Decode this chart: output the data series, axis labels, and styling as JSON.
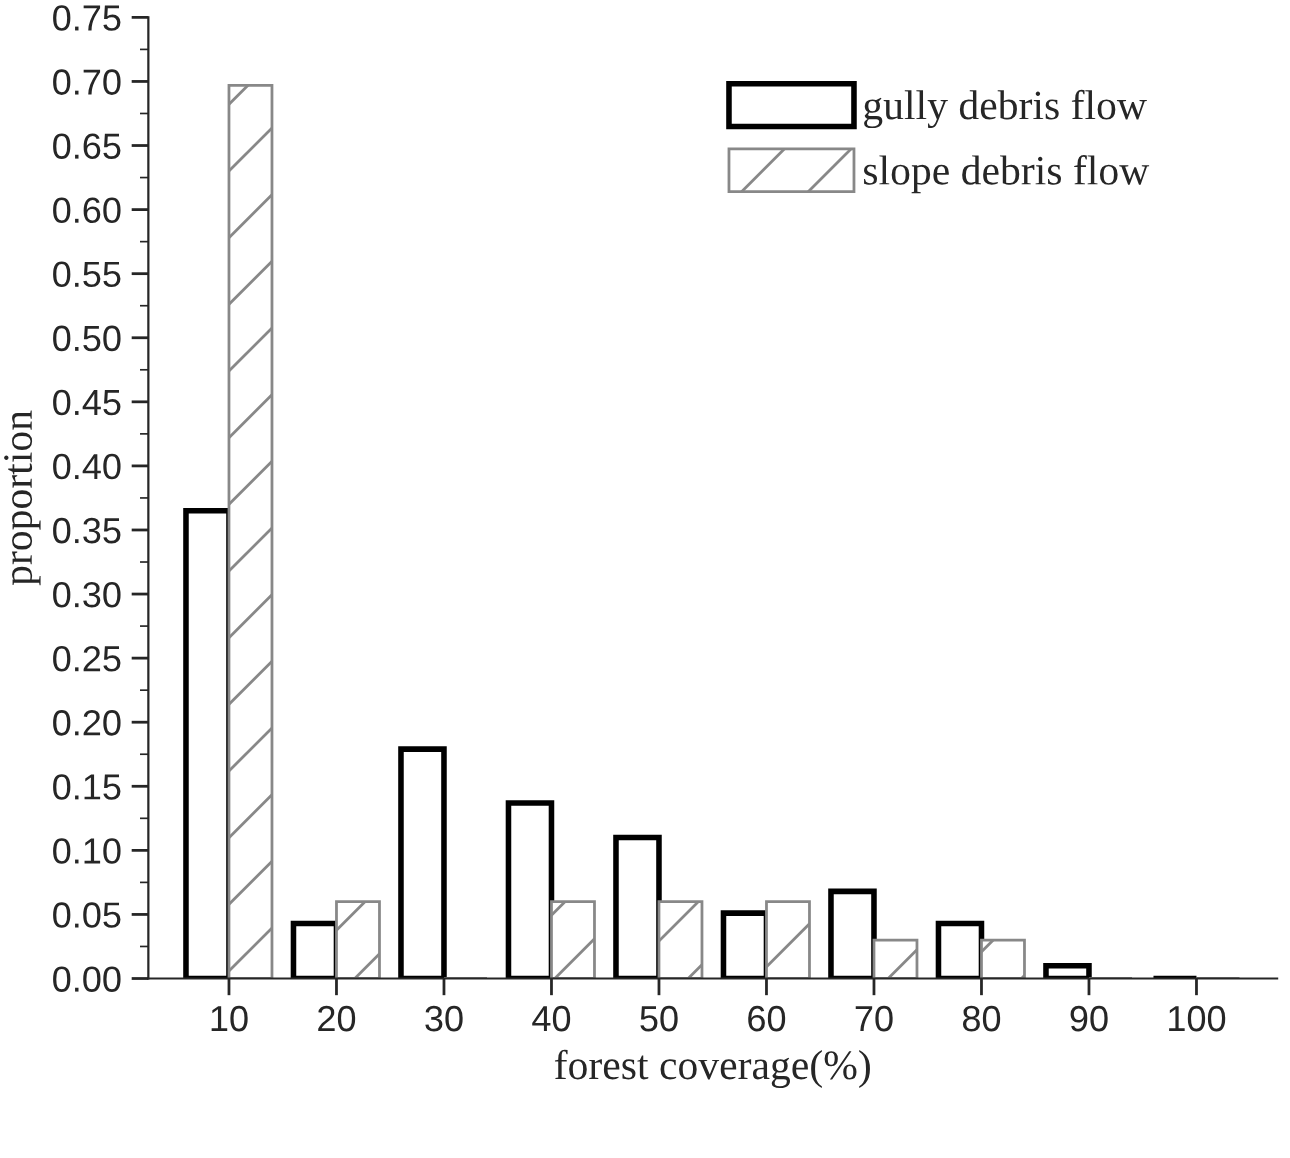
{
  "chart_data": {
    "type": "bar",
    "xlabel": "forest coverage(%)",
    "ylabel": "proportion",
    "categories": [
      "10",
      "20",
      "30",
      "40",
      "50",
      "60",
      "70",
      "80",
      "90",
      "100"
    ],
    "series": [
      {
        "name": "gully debris flow",
        "color": "#000000",
        "values": [
          0.365,
          0.043,
          0.179,
          0.137,
          0.11,
          0.051,
          0.068,
          0.043,
          0.01,
          0
        ]
      },
      {
        "name": "slope debris flow",
        "color": "#888888",
        "values": [
          0.697,
          0.06,
          0,
          0.06,
          0.06,
          0.06,
          0.03,
          0.03,
          0,
          0
        ]
      }
    ],
    "ylim": [
      0,
      0.75
    ],
    "yticks": [
      {
        "value": 0,
        "label": "0.00"
      },
      {
        "value": 0.05,
        "label": "0.05"
      },
      {
        "value": 0.1,
        "label": "0.10"
      },
      {
        "value": 0.15,
        "label": "0.15"
      },
      {
        "value": 0.2,
        "label": "0.20"
      },
      {
        "value": 0.25,
        "label": "0.25"
      },
      {
        "value": 0.3,
        "label": "0.30"
      },
      {
        "value": 0.35,
        "label": "0.35"
      },
      {
        "value": 0.4,
        "label": "0.40"
      },
      {
        "value": 0.45,
        "label": "0.45"
      },
      {
        "value": 0.5,
        "label": "0.50"
      },
      {
        "value": 0.55,
        "label": "0.55"
      },
      {
        "value": 0.6,
        "label": "0.60"
      },
      {
        "value": 0.65,
        "label": "0.65"
      },
      {
        "value": 0.7,
        "label": "0.70"
      },
      {
        "value": 0.75,
        "label": "0.75"
      }
    ],
    "grid": false,
    "legend": "top right"
  }
}
